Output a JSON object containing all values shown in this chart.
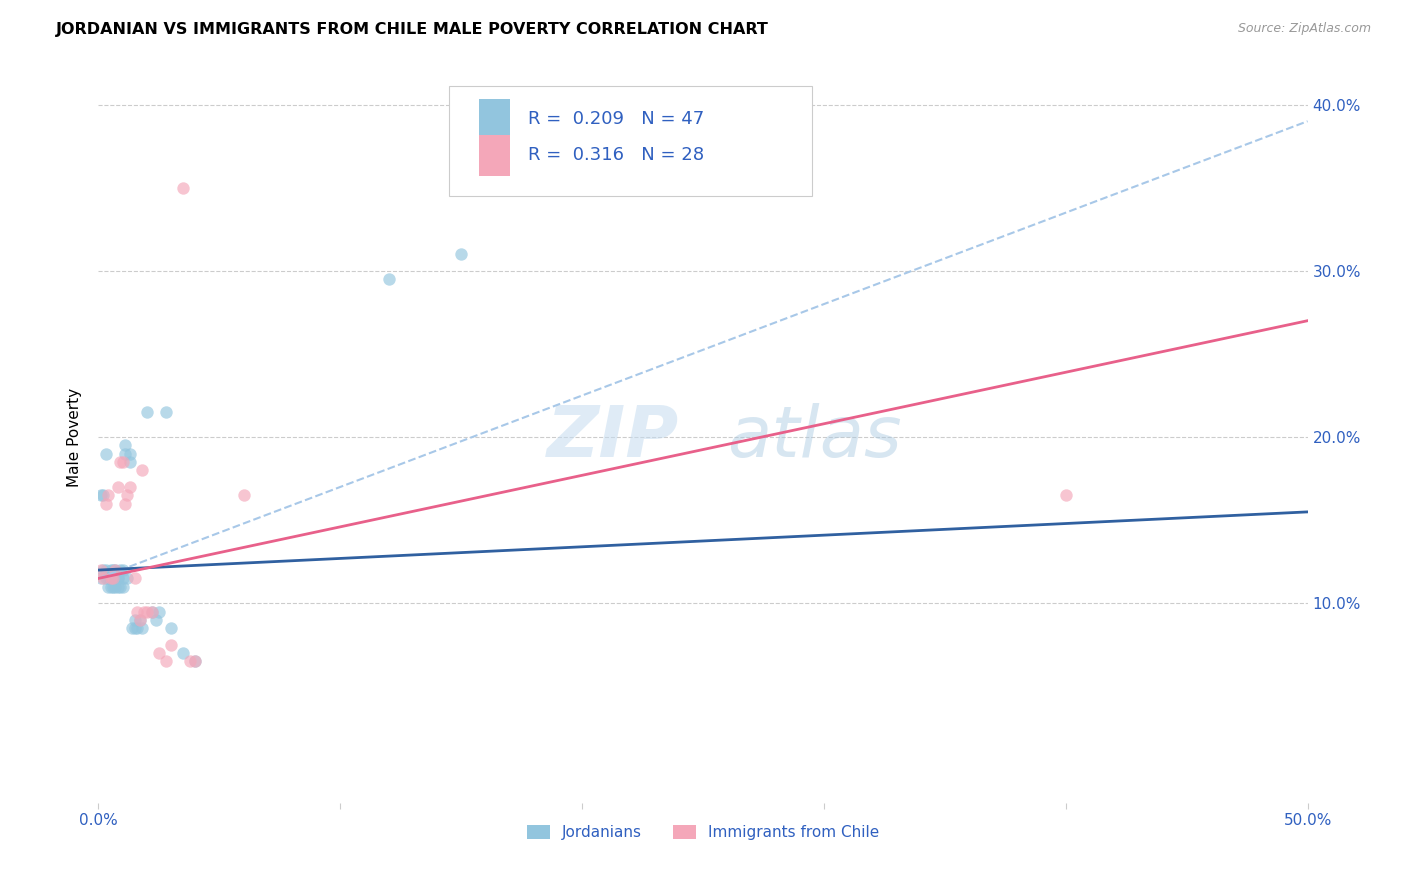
{
  "title": "JORDANIAN VS IMMIGRANTS FROM CHILE MALE POVERTY CORRELATION CHART",
  "source": "Source: ZipAtlas.com",
  "ylabel": "Male Poverty",
  "xlim": [
    0.0,
    0.5
  ],
  "ylim": [
    -0.02,
    0.42
  ],
  "xticks": [
    0.0,
    0.1,
    0.2,
    0.3,
    0.4,
    0.5
  ],
  "xtick_labels": [
    "0.0%",
    "",
    "",
    "",
    "",
    "50.0%"
  ],
  "yticks": [
    0.1,
    0.2,
    0.3,
    0.4
  ],
  "ytick_labels": [
    "10.0%",
    "20.0%",
    "30.0%",
    "40.0%"
  ],
  "watermark_zip": "ZIP",
  "watermark_atlas": "atlas",
  "legend_r1": "0.209",
  "legend_n1": "47",
  "legend_r2": "0.316",
  "legend_n2": "28",
  "legend_label1": "Jordanians",
  "legend_label2": "Immigrants from Chile",
  "blue_color": "#92C5DE",
  "pink_color": "#F4A7B9",
  "blue_line_color": "#3060A0",
  "pink_line_color": "#E8608A",
  "blue_dash_color": "#A8C8E8",
  "text_color": "#3060C0",
  "jordanians_x": [
    0.001,
    0.001,
    0.002,
    0.002,
    0.003,
    0.003,
    0.003,
    0.004,
    0.004,
    0.005,
    0.005,
    0.005,
    0.006,
    0.006,
    0.006,
    0.007,
    0.007,
    0.007,
    0.008,
    0.008,
    0.008,
    0.009,
    0.009,
    0.01,
    0.01,
    0.01,
    0.011,
    0.011,
    0.012,
    0.013,
    0.013,
    0.014,
    0.015,
    0.015,
    0.016,
    0.017,
    0.018,
    0.02,
    0.022,
    0.024,
    0.025,
    0.028,
    0.03,
    0.035,
    0.04,
    0.12,
    0.15
  ],
  "jordanians_y": [
    0.115,
    0.165,
    0.12,
    0.165,
    0.12,
    0.115,
    0.19,
    0.11,
    0.115,
    0.115,
    0.11,
    0.12,
    0.115,
    0.11,
    0.12,
    0.115,
    0.11,
    0.12,
    0.115,
    0.11,
    0.115,
    0.11,
    0.12,
    0.115,
    0.11,
    0.12,
    0.195,
    0.19,
    0.115,
    0.185,
    0.19,
    0.085,
    0.09,
    0.085,
    0.085,
    0.09,
    0.085,
    0.215,
    0.095,
    0.09,
    0.095,
    0.215,
    0.085,
    0.07,
    0.065,
    0.295,
    0.31
  ],
  "chile_x": [
    0.001,
    0.002,
    0.003,
    0.004,
    0.005,
    0.006,
    0.007,
    0.008,
    0.009,
    0.01,
    0.011,
    0.012,
    0.013,
    0.015,
    0.016,
    0.017,
    0.018,
    0.019,
    0.02,
    0.022,
    0.025,
    0.028,
    0.03,
    0.035,
    0.038,
    0.04,
    0.06,
    0.4
  ],
  "chile_y": [
    0.12,
    0.115,
    0.16,
    0.165,
    0.115,
    0.115,
    0.12,
    0.17,
    0.185,
    0.185,
    0.16,
    0.165,
    0.17,
    0.115,
    0.095,
    0.09,
    0.18,
    0.095,
    0.095,
    0.095,
    0.07,
    0.065,
    0.075,
    0.35,
    0.065,
    0.065,
    0.165,
    0.165
  ],
  "jordan_trend_x": [
    0.0,
    0.5
  ],
  "jordan_trend_y": [
    0.12,
    0.155
  ],
  "chile_trend_x": [
    0.0,
    0.5
  ],
  "chile_trend_y": [
    0.115,
    0.27
  ],
  "dash_trend_x": [
    0.0,
    0.5
  ],
  "dash_trend_y": [
    0.115,
    0.39
  ]
}
